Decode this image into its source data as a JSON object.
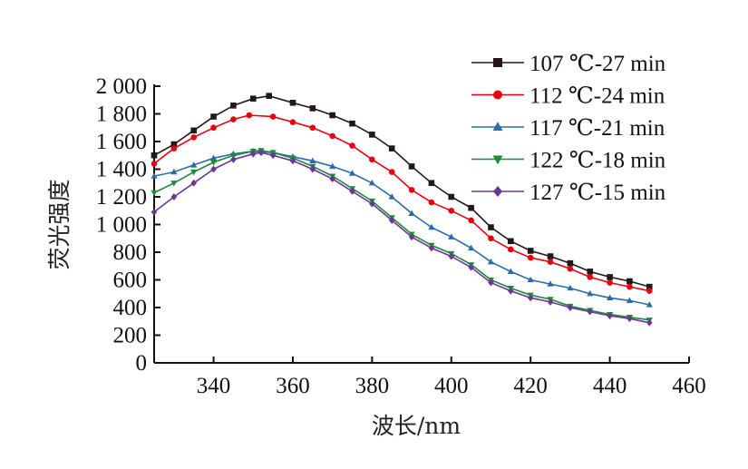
{
  "chart_data": {
    "type": "line",
    "xlabel": "波长/nm",
    "ylabel": "荧光强度",
    "xlim": [
      325,
      460
    ],
    "ylim": [
      0,
      2000
    ],
    "xticks": [
      340,
      360,
      380,
      400,
      420,
      440,
      460
    ],
    "yticks": [
      0,
      200,
      400,
      600,
      800,
      1000,
      1200,
      1400,
      1600,
      1800,
      2000
    ],
    "ytick_labels": [
      "0",
      "200",
      "400",
      "600",
      "800",
      "1 000",
      "1 200",
      "1 400",
      "1 600",
      "1 800",
      "2 000"
    ],
    "grid": false,
    "legend_position": "top-right",
    "series": [
      {
        "name": "107 ℃-27 min",
        "color": "#231815",
        "marker": "square",
        "x": [
          325,
          330,
          335,
          340,
          345,
          350,
          354,
          360,
          365,
          370,
          375,
          380,
          385,
          390,
          395,
          400,
          405,
          410,
          415,
          420,
          425,
          430,
          435,
          440,
          445,
          450
        ],
        "y": [
          1500,
          1580,
          1680,
          1780,
          1860,
          1910,
          1930,
          1880,
          1840,
          1790,
          1730,
          1650,
          1550,
          1420,
          1300,
          1200,
          1120,
          980,
          880,
          810,
          770,
          720,
          660,
          620,
          590,
          550
        ]
      },
      {
        "name": "112 ℃-24 min",
        "color": "#e60012",
        "marker": "circle",
        "x": [
          325,
          330,
          335,
          340,
          345,
          349,
          355,
          360,
          365,
          370,
          375,
          380,
          385,
          390,
          395,
          400,
          405,
          410,
          415,
          420,
          425,
          430,
          435,
          440,
          445,
          450
        ],
        "y": [
          1440,
          1550,
          1630,
          1700,
          1760,
          1790,
          1780,
          1740,
          1700,
          1640,
          1570,
          1470,
          1380,
          1250,
          1160,
          1100,
          1030,
          900,
          820,
          760,
          730,
          680,
          620,
          580,
          550,
          520
        ]
      },
      {
        "name": "117 ℃-21 min",
        "color": "#2b6ca8",
        "marker": "triangle",
        "x": [
          325,
          330,
          335,
          340,
          345,
          350,
          355,
          360,
          365,
          370,
          375,
          380,
          385,
          390,
          395,
          400,
          405,
          410,
          415,
          420,
          425,
          430,
          435,
          440,
          445,
          450
        ],
        "y": [
          1350,
          1380,
          1430,
          1480,
          1510,
          1530,
          1520,
          1490,
          1460,
          1420,
          1370,
          1300,
          1200,
          1080,
          980,
          910,
          830,
          730,
          660,
          600,
          570,
          540,
          500,
          470,
          450,
          420
        ]
      },
      {
        "name": "122 ℃-18 min",
        "color": "#1e8a3a",
        "marker": "triangle-down",
        "x": [
          325,
          330,
          335,
          340,
          345,
          350,
          352,
          355,
          360,
          365,
          370,
          375,
          380,
          385,
          390,
          395,
          400,
          405,
          410,
          415,
          420,
          425,
          430,
          435,
          440,
          445,
          450
        ],
        "y": [
          1230,
          1300,
          1380,
          1450,
          1500,
          1530,
          1535,
          1520,
          1480,
          1420,
          1350,
          1260,
          1170,
          1050,
          930,
          850,
          790,
          710,
          600,
          540,
          490,
          460,
          410,
          380,
          350,
          330,
          310
        ]
      },
      {
        "name": "127 ℃-15 min",
        "color": "#6a3894",
        "marker": "diamond",
        "x": [
          325,
          330,
          335,
          340,
          345,
          350,
          352,
          355,
          360,
          365,
          370,
          375,
          380,
          385,
          390,
          395,
          400,
          405,
          410,
          415,
          420,
          425,
          430,
          435,
          440,
          445,
          450
        ],
        "y": [
          1090,
          1200,
          1300,
          1400,
          1470,
          1510,
          1520,
          1500,
          1460,
          1400,
          1330,
          1240,
          1150,
          1030,
          910,
          830,
          770,
          690,
          580,
          520,
          470,
          440,
          400,
          370,
          340,
          320,
          290
        ]
      }
    ]
  }
}
